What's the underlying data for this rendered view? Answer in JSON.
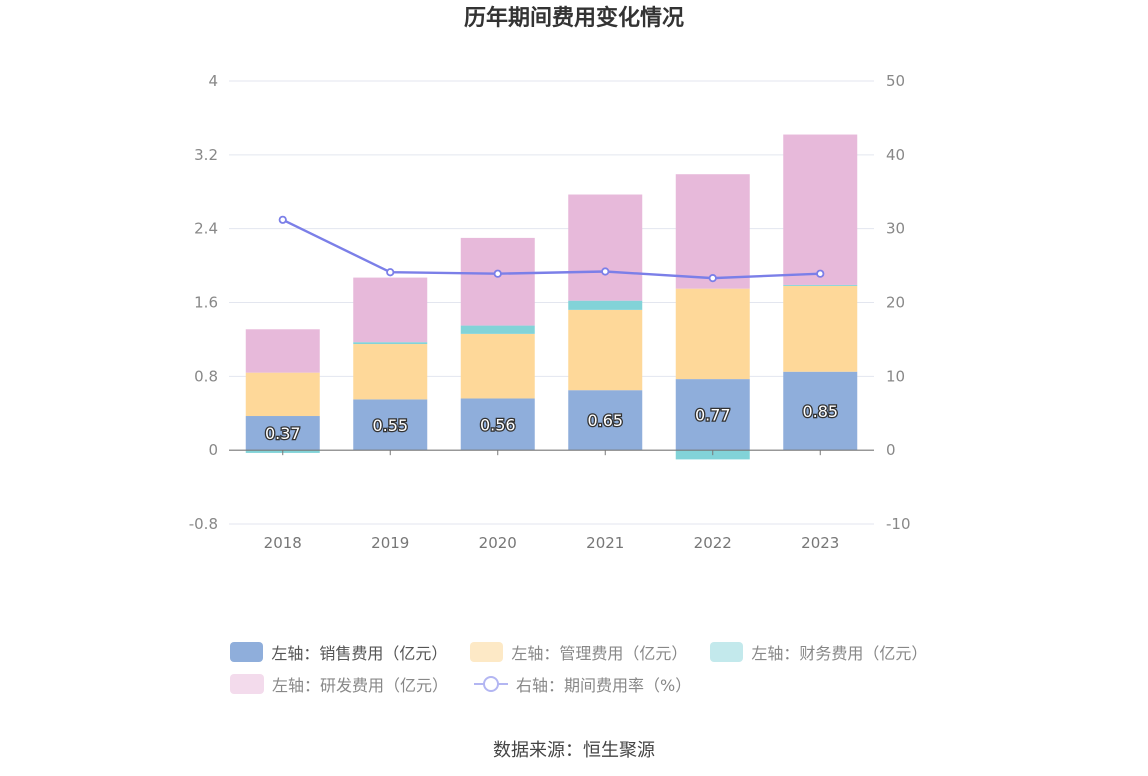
{
  "chart_data": {
    "type": "bar",
    "title": "历年期间费用变化情况",
    "categories": [
      "2018",
      "2019",
      "2020",
      "2021",
      "2022",
      "2023"
    ],
    "series": [
      {
        "name": "左轴：销售费用（亿元）",
        "axis": "left",
        "stack": "cost",
        "color": "#8faedb",
        "values": [
          0.37,
          0.55,
          0.56,
          0.65,
          0.77,
          0.85
        ]
      },
      {
        "name": "左轴：管理费用（亿元）",
        "axis": "left",
        "stack": "cost",
        "color": "#fed899",
        "values": [
          0.47,
          0.6,
          0.7,
          0.87,
          0.98,
          0.93
        ]
      },
      {
        "name": "左轴：财务费用（亿元）",
        "axis": "left",
        "stack": "cost",
        "color": "#82d3d8",
        "values": [
          -0.03,
          0.02,
          0.09,
          0.1,
          -0.1,
          0.01
        ]
      },
      {
        "name": "左轴：研发费用（亿元）",
        "axis": "left",
        "stack": "cost",
        "color": "#e7b9da",
        "values": [
          0.47,
          0.7,
          0.95,
          1.15,
          1.24,
          1.63
        ]
      },
      {
        "name": "右轴：期间费用率（%）",
        "axis": "right",
        "type": "line",
        "color": "#7b7fe8",
        "values": [
          31.2,
          24.1,
          23.9,
          24.2,
          23.3,
          23.9
        ]
      }
    ],
    "data_labels": [
      "0.37",
      "0.55",
      "0.56",
      "0.65",
      "0.77",
      "0.85"
    ],
    "y_left": {
      "min": -0.8,
      "max": 4,
      "ticks": [
        "-0.8",
        "0",
        "0.8",
        "1.6",
        "2.4",
        "3.2",
        "4"
      ]
    },
    "y_right": {
      "min": -10,
      "max": 50,
      "ticks": [
        "-10",
        "0",
        "10",
        "20",
        "30",
        "40",
        "50"
      ]
    },
    "grid": true,
    "legend_position": "bottom",
    "xlabel": "",
    "ylabel": ""
  },
  "source": "数据来源：恒生聚源"
}
